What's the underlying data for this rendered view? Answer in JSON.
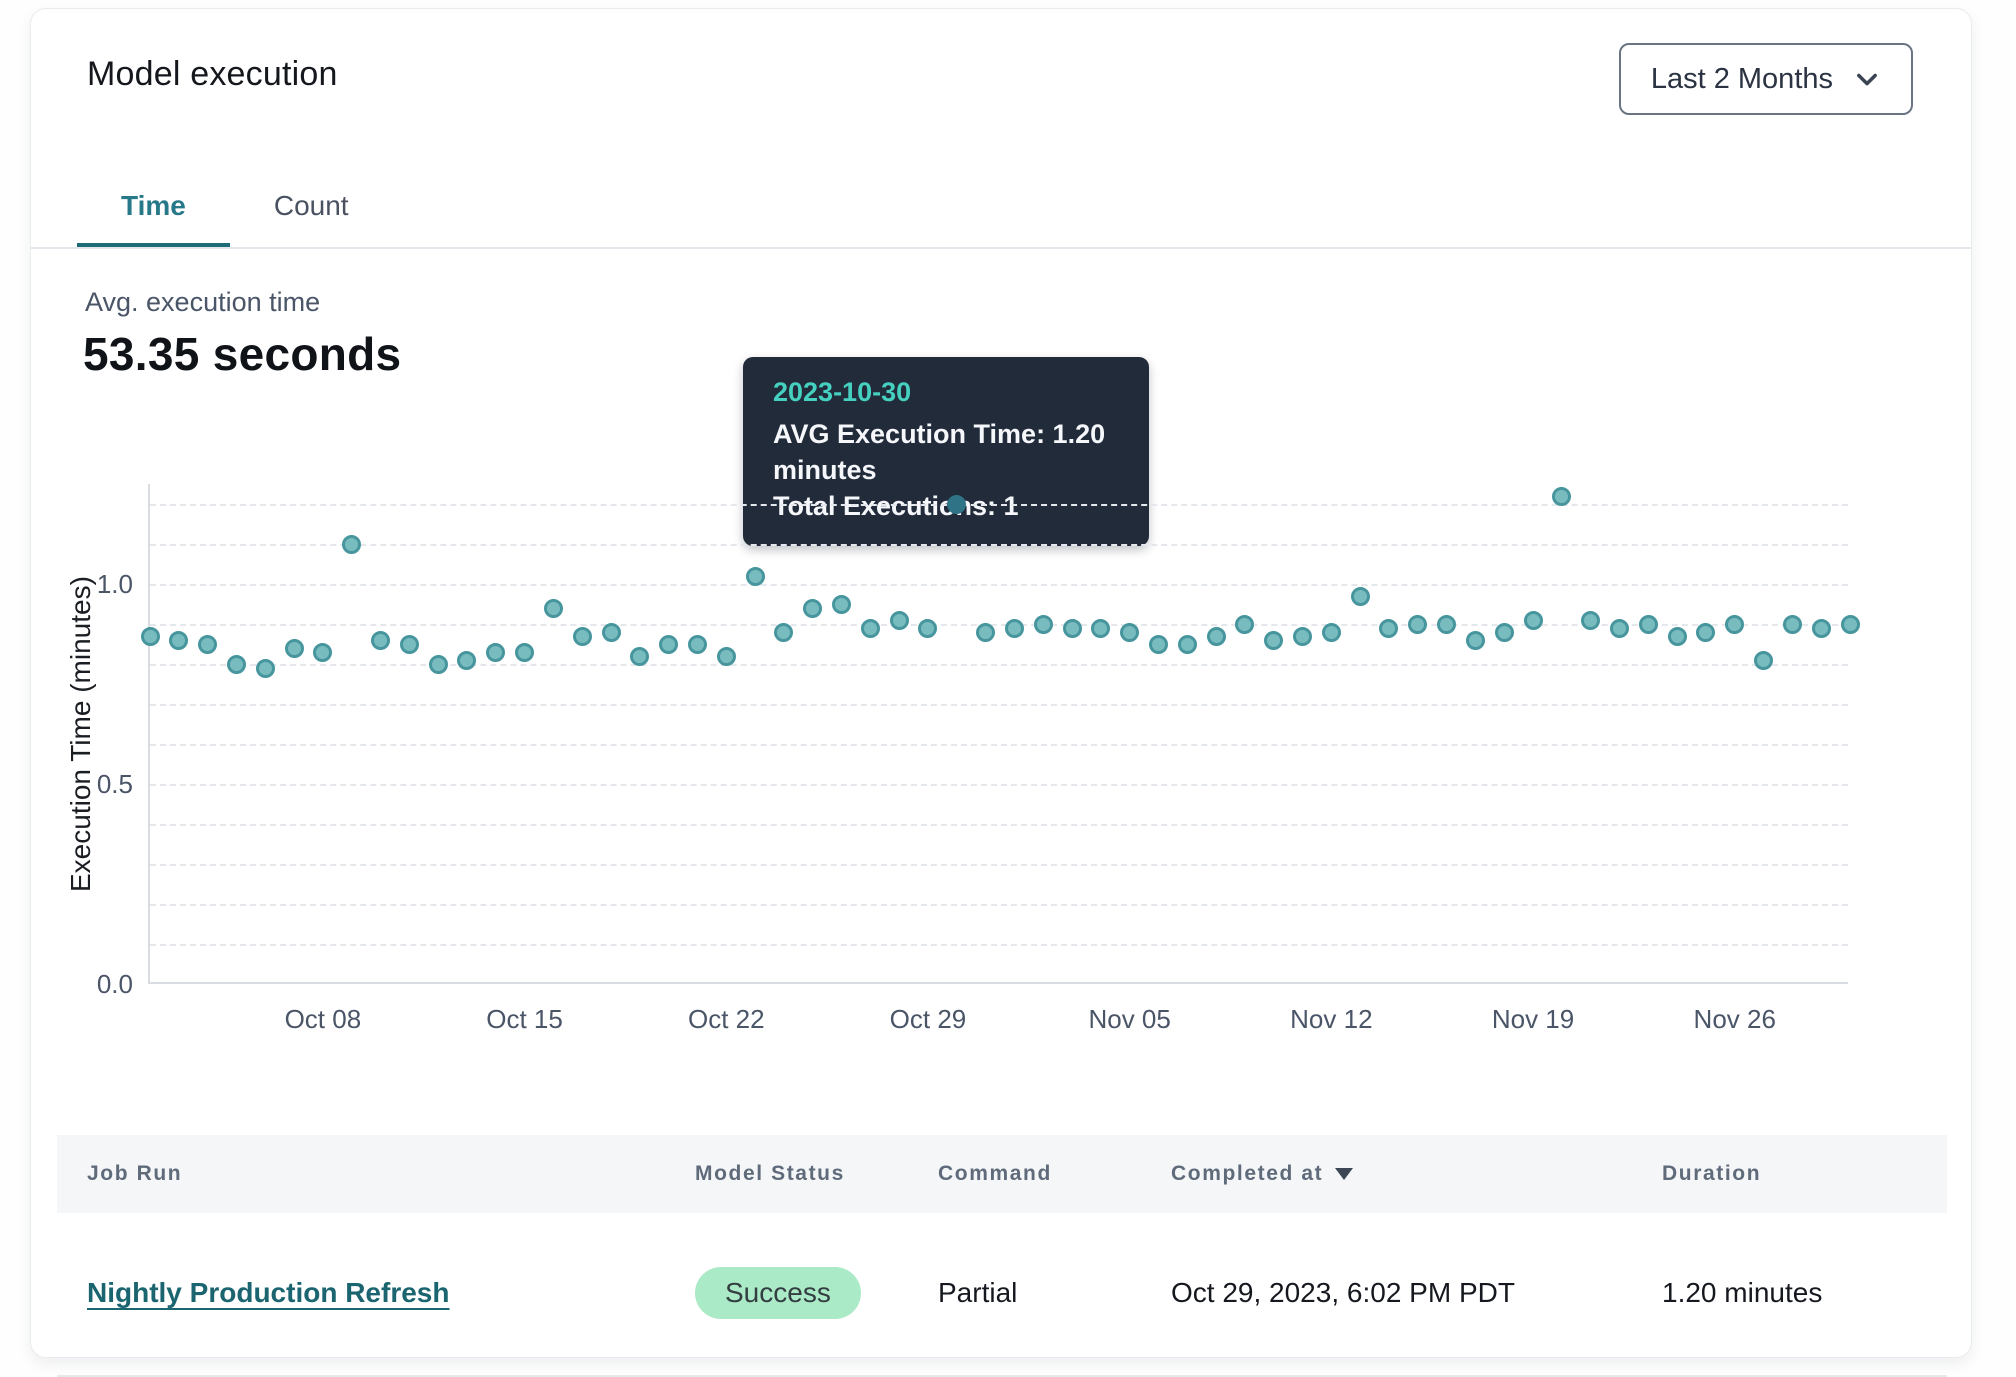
{
  "header": {
    "title": "Model execution",
    "range_selector": {
      "value": "Last 2 Months"
    }
  },
  "tabs": [
    {
      "label": "Time",
      "active": true
    },
    {
      "label": "Count",
      "active": false
    }
  ],
  "metric": {
    "label": "Avg. execution time",
    "value": "53.35 seconds"
  },
  "tooltip": {
    "date": "2023-10-30",
    "line1": "AVG Execution Time: 1.20 minutes",
    "line2": "Total Executions: 1"
  },
  "chart_data": {
    "type": "scatter",
    "title": "",
    "xlabel": "",
    "ylabel": "Execution Time (minutes)",
    "ylim": [
      0,
      1.25
    ],
    "yticks": [
      0.0,
      0.5,
      1.0
    ],
    "grid": "horizontal dashed every 0.1 up to 1.2",
    "legend": "none",
    "x_tick_labels": [
      "Oct 08",
      "Oct 15",
      "Oct 22",
      "Oct 29",
      "Nov 05",
      "Nov 12",
      "Nov 19",
      "Nov 26"
    ],
    "x_tick_indices": [
      6,
      13,
      20,
      27,
      34,
      41,
      48,
      55
    ],
    "series": [
      {
        "name": "AVG Execution Time (minutes)",
        "dates": [
          "2023-10-02",
          "2023-10-03",
          "2023-10-04",
          "2023-10-05",
          "2023-10-06",
          "2023-10-07",
          "2023-10-08",
          "2023-10-09",
          "2023-10-10",
          "2023-10-11",
          "2023-10-12",
          "2023-10-13",
          "2023-10-14",
          "2023-10-15",
          "2023-10-16",
          "2023-10-17",
          "2023-10-18",
          "2023-10-19",
          "2023-10-20",
          "2023-10-21",
          "2023-10-22",
          "2023-10-23",
          "2023-10-24",
          "2023-10-25",
          "2023-10-26",
          "2023-10-27",
          "2023-10-28",
          "2023-10-29",
          "2023-10-30",
          "2023-10-31",
          "2023-11-01",
          "2023-11-02",
          "2023-11-03",
          "2023-11-04",
          "2023-11-05",
          "2023-11-06",
          "2023-11-07",
          "2023-11-08",
          "2023-11-09",
          "2023-11-10",
          "2023-11-11",
          "2023-11-12",
          "2023-11-13",
          "2023-11-14",
          "2023-11-15",
          "2023-11-16",
          "2023-11-17",
          "2023-11-18",
          "2023-11-19",
          "2023-11-20",
          "2023-11-21",
          "2023-11-22",
          "2023-11-23",
          "2023-11-24",
          "2023-11-25",
          "2023-11-26",
          "2023-11-27",
          "2023-11-28",
          "2023-11-29",
          "2023-11-30"
        ],
        "values": [
          0.87,
          0.86,
          0.85,
          0.8,
          0.79,
          0.84,
          0.83,
          1.1,
          0.86,
          0.85,
          0.8,
          0.81,
          0.83,
          0.83,
          0.94,
          0.87,
          0.88,
          0.82,
          0.85,
          0.85,
          0.82,
          1.02,
          0.88,
          0.94,
          0.95,
          0.89,
          0.91,
          0.89,
          1.2,
          0.88,
          0.89,
          0.9,
          0.89,
          0.89,
          0.88,
          0.85,
          0.85,
          0.87,
          0.9,
          0.86,
          0.87,
          0.88,
          0.97,
          0.89,
          0.9,
          0.9,
          0.86,
          0.88,
          0.91,
          1.22,
          0.91,
          0.89,
          0.9,
          0.87,
          0.88,
          0.9,
          0.81,
          0.9,
          0.89,
          0.9
        ]
      }
    ],
    "highlight": {
      "index": 28,
      "date": "2023-10-30",
      "value": 1.2,
      "total_executions": 1
    }
  },
  "table": {
    "columns": [
      "Job Run",
      "Model Status",
      "Command",
      "Completed at",
      "Duration"
    ],
    "sorted_column": "Completed at",
    "sort_direction": "desc",
    "rows": [
      {
        "job_run": "Nightly Production Refresh",
        "model_status": "Success",
        "command": "Partial",
        "completed_at": "Oct 29, 2023, 6:02 PM PDT",
        "duration": "1.20 minutes"
      }
    ]
  },
  "colors": {
    "accent_teal": "#27798a",
    "link_teal": "#1b6570",
    "point_fill": "#79bcc0",
    "point_border": "#47969e",
    "highlight_point": "#2e7386",
    "tooltip_bg": "#212b3a",
    "tooltip_date": "#45d0bf",
    "success_pill_bg": "#abeac6",
    "success_pill_text": "#333d42"
  }
}
